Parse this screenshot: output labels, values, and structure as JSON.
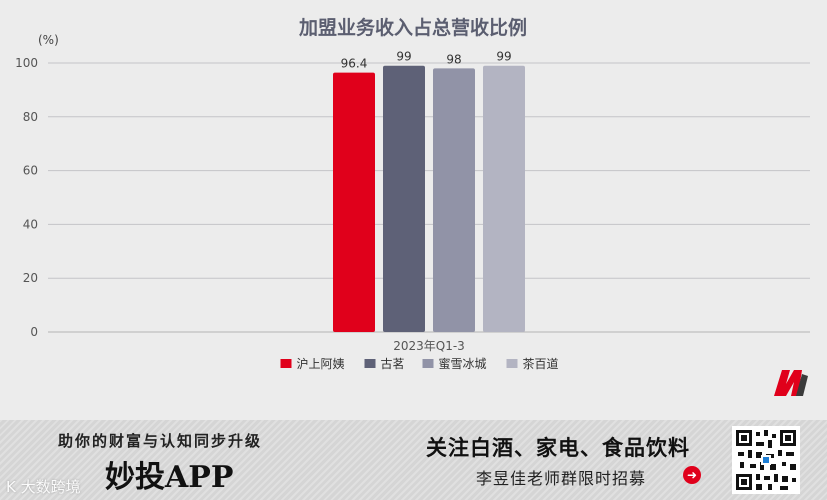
{
  "chart_data": {
    "type": "bar",
    "title": "加盟业务收入占总营收比例",
    "unit_label": "(%)",
    "categories": [
      "2023年Q1-3"
    ],
    "ylim": [
      0,
      100
    ],
    "yticks": [
      0,
      20,
      40,
      60,
      80,
      100
    ],
    "grid": true,
    "legend_position": "bottom",
    "show_data_labels": true,
    "series": [
      {
        "name": "沪上阿姨",
        "values": [
          96.4
        ],
        "label": "96.4",
        "color": "#e0001b"
      },
      {
        "name": "古茗",
        "values": [
          99
        ],
        "label": "99",
        "color": "#5e6177"
      },
      {
        "name": "蜜雪冰城",
        "values": [
          98
        ],
        "label": "98",
        "color": "#9193a7"
      },
      {
        "name": "茶百道",
        "values": [
          99
        ],
        "label": "99",
        "color": "#b3b4c2"
      }
    ]
  },
  "banner": {
    "tagline": "助你的财富与认知同步升级",
    "app_name": "妙投APP",
    "headline": "关注白酒、家电、食品饮料",
    "subline": "李昱佳老师群限时招募",
    "arrow_icon": "arrow-right-icon",
    "watermark": "K 大数跨境"
  },
  "logo": {
    "icon": "miaotou-m-logo",
    "colors": [
      "#e0001b",
      "#3b3b3b"
    ]
  }
}
